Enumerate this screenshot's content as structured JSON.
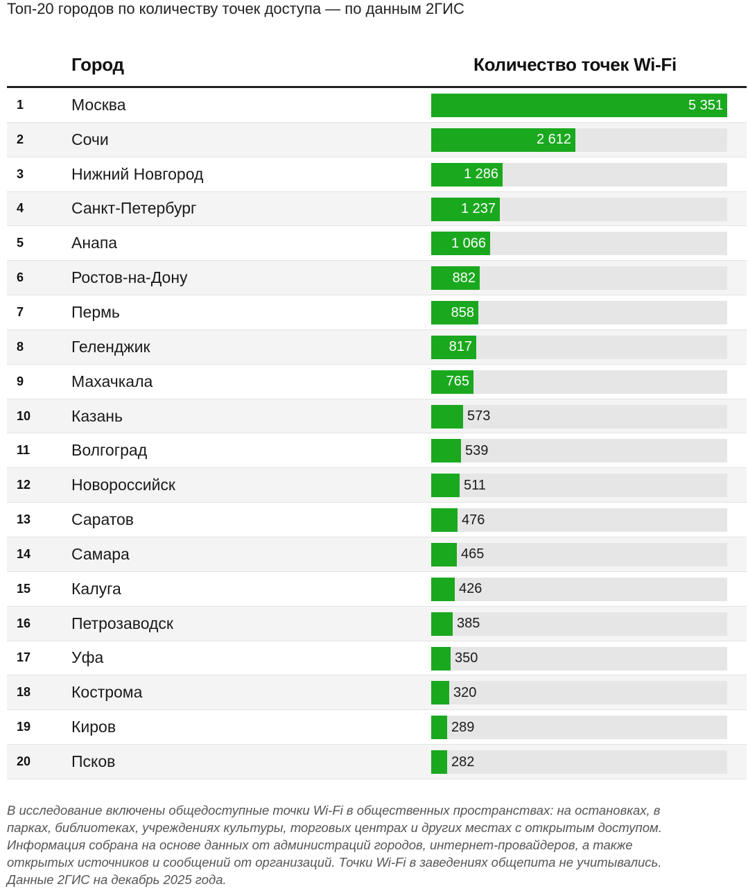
{
  "title": "Топ-20 городов по количеству точек доступа — по данным 2ГИС",
  "columns": {
    "city": "Город",
    "value": "Количество точек Wi-Fi"
  },
  "colors": {
    "bar": "#1aa81e",
    "track": "#e6e6e6",
    "zebra": "#f4f4f4"
  },
  "chart_data": {
    "type": "bar",
    "orientation": "horizontal",
    "title": "Топ-20 городов по количеству точек доступа — по данным 2ГИС",
    "xlabel": "Количество точек Wi-Fi",
    "ylabel": "Город",
    "xlim": [
      0,
      5351
    ],
    "ranks": [
      "1",
      "2",
      "3",
      "4",
      "5",
      "6",
      "7",
      "8",
      "9",
      "10",
      "11",
      "12",
      "13",
      "14",
      "15",
      "16",
      "17",
      "18",
      "19",
      "20"
    ],
    "categories": [
      "Москва",
      "Сочи",
      "Нижний Новгород",
      "Санкт-Петербург",
      "Анапа",
      "Ростов-на-Дону",
      "Пермь",
      "Геленджик",
      "Махачкала",
      "Казань",
      "Волгоград",
      "Новороссийск",
      "Саратов",
      "Самара",
      "Калуга",
      "Петрозаводск",
      "Уфа",
      "Кострома",
      "Киров",
      "Псков"
    ],
    "values": [
      5351,
      2612,
      1286,
      1237,
      1066,
      882,
      858,
      817,
      765,
      573,
      539,
      511,
      476,
      465,
      426,
      385,
      350,
      320,
      289,
      282
    ],
    "labels": [
      "5 351",
      "2 612",
      "1 286",
      "1 237",
      "1 066",
      "882",
      "858",
      "817",
      "765",
      "573",
      "539",
      "511",
      "476",
      "465",
      "426",
      "385",
      "350",
      "320",
      "289",
      "282"
    ]
  },
  "note": [
    "В исследование включены общедоступные точки Wi-Fi в общественных пространствах: на остановках, в",
    "парках, библиотеках, учреждениях культуры, торговых центрах и других местах с открытым доступом.",
    "Информация собрана на основе данных от администраций городов, интернет-провайдеров, а также",
    "открытых источников и сообщений от организаций. Точки Wi-Fi в заведениях общепита не учитывались.",
    "Данные 2ГИС на декабрь 2025 года."
  ]
}
